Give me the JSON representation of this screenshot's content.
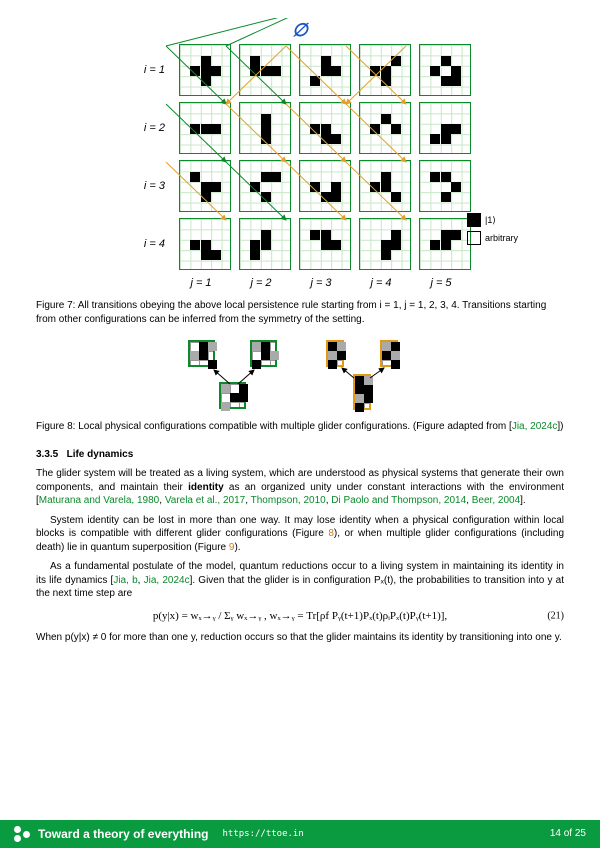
{
  "figure7": {
    "emptyset_symbol": "∅",
    "row_labels": [
      "i = 1",
      "i = 2",
      "i = 3",
      "i = 4"
    ],
    "col_labels": [
      "j = 1",
      "j = 2",
      "j = 3",
      "j = 4",
      "j = 5"
    ],
    "grid_size": 5,
    "configs": [
      [
        [
          [
            1,
            2
          ],
          [
            2,
            1
          ],
          [
            2,
            2
          ],
          [
            2,
            3
          ],
          [
            3,
            2
          ]
        ],
        [
          [
            1,
            1
          ],
          [
            2,
            1
          ],
          [
            2,
            2
          ],
          [
            2,
            3
          ]
        ],
        [
          [
            1,
            2
          ],
          [
            2,
            2
          ],
          [
            2,
            3
          ],
          [
            3,
            1
          ]
        ],
        [
          [
            1,
            3
          ],
          [
            2,
            1
          ],
          [
            2,
            2
          ],
          [
            3,
            2
          ]
        ],
        [
          [
            1,
            2
          ],
          [
            2,
            1
          ],
          [
            2,
            3
          ],
          [
            3,
            2
          ],
          [
            3,
            3
          ]
        ]
      ],
      [
        [
          [
            2,
            1
          ],
          [
            2,
            2
          ],
          [
            2,
            3
          ]
        ],
        [
          [
            1,
            2
          ],
          [
            2,
            2
          ],
          [
            3,
            2
          ]
        ],
        [
          [
            2,
            1
          ],
          [
            2,
            2
          ],
          [
            3,
            2
          ],
          [
            3,
            3
          ]
        ],
        [
          [
            1,
            2
          ],
          [
            2,
            1
          ],
          [
            2,
            3
          ]
        ],
        [
          [
            2,
            2
          ],
          [
            2,
            3
          ],
          [
            3,
            1
          ],
          [
            3,
            2
          ]
        ]
      ],
      [
        [
          [
            1,
            1
          ],
          [
            2,
            2
          ],
          [
            2,
            3
          ],
          [
            3,
            2
          ]
        ],
        [
          [
            1,
            2
          ],
          [
            1,
            3
          ],
          [
            2,
            1
          ],
          [
            3,
            2
          ]
        ],
        [
          [
            2,
            1
          ],
          [
            2,
            3
          ],
          [
            3,
            2
          ],
          [
            3,
            3
          ]
        ],
        [
          [
            1,
            2
          ],
          [
            2,
            1
          ],
          [
            2,
            2
          ],
          [
            3,
            3
          ]
        ],
        [
          [
            1,
            1
          ],
          [
            1,
            2
          ],
          [
            2,
            3
          ],
          [
            3,
            2
          ]
        ]
      ],
      [
        [
          [
            2,
            1
          ],
          [
            2,
            2
          ],
          [
            3,
            2
          ],
          [
            3,
            3
          ]
        ],
        [
          [
            1,
            2
          ],
          [
            2,
            1
          ],
          [
            2,
            2
          ],
          [
            3,
            1
          ]
        ],
        [
          [
            1,
            1
          ],
          [
            1,
            2
          ],
          [
            2,
            2
          ],
          [
            2,
            3
          ]
        ],
        [
          [
            1,
            3
          ],
          [
            2,
            2
          ],
          [
            2,
            3
          ],
          [
            3,
            2
          ]
        ],
        [
          [
            1,
            2
          ],
          [
            1,
            3
          ],
          [
            2,
            1
          ],
          [
            2,
            2
          ]
        ]
      ]
    ],
    "legend": {
      "black": "|1⟩",
      "white": "arbitrary"
    },
    "caption_label": "Figure 7: ",
    "caption": "All transitions obeying the above local persistence rule starting from i = 1, j = 1, 2, 3, 4. Transitions starting from other configurations can be inferred from the symmetry of the setting."
  },
  "figure8": {
    "caption_label": "Figure 8: ",
    "caption": "Local physical configurations compatible with multiple glider configurations. (Figure adapted from [",
    "cite": "Jia, 2024c",
    "caption_end": "])"
  },
  "section": {
    "number": "3.3.5",
    "title": "Life dynamics"
  },
  "body": {
    "p1a": "The glider system will be treated as a living system, which are understood as physical systems that generate their own components, and maintain their ",
    "identity": "identity",
    "p1b": " as an organized unity under constant interactions with the environment [",
    "cites1": [
      "Maturana and Varela, 1980",
      "Varela et al., 2017",
      "Thompson, 2010",
      "Di Paolo and Thompson, 2014",
      "Beer, 2004"
    ],
    "p1c": "].",
    "p2a": "System identity can be lost in more than one way. It may lose identity when a physical configuration within local blocks is compatible with different glider configurations (Figure ",
    "ref8": "8",
    "p2b": "), or when multiple glider configurations (including death) lie in quantum superposition (Figure ",
    "ref9": "9",
    "p2c": ").",
    "p3a": "As a fundamental postulate of the model, quantum reductions occur to a living system in maintaining its identity in its life dynamics [",
    "cites3": [
      "Jia, b",
      "Jia, 2024c"
    ],
    "p3b": "]. Given that the glider is in configuration Pₓ(t), the probabilities to transition into y at the next time step are",
    "p4": "When p(y|x) ≠ 0 for more than one y, reduction occurs so that the glider maintains its identity by transitioning into one y."
  },
  "equation": {
    "text": "p(y|x) = wₓ→ᵧ / Σᵧ wₓ→ᵧ ,    wₓ→ᵧ = Tr[ρf Pᵧ(t+1)Pₓ(t)ρᵢPₓ(t)Pᵧ(t+1)],",
    "number": "(21)"
  },
  "footer": {
    "title": "Toward a theory of everything",
    "url": "https://ttoe.in",
    "page": "14 of 25"
  },
  "colors": {
    "accent_green": "#0a9a3f",
    "cite_green": "#0a8a2a",
    "cite_orange": "#d07a13",
    "blue": "#1a54c9"
  }
}
